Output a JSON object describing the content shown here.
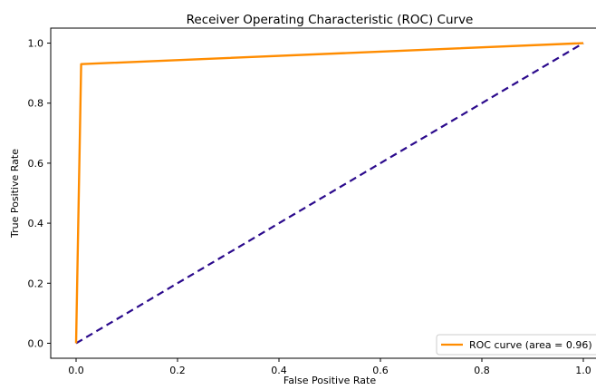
{
  "chart_data": {
    "type": "line",
    "title": "Receiver Operating Characteristic (ROC) Curve",
    "xlabel": "False Positive Rate",
    "ylabel": "True Positive Rate",
    "xlim": [
      -0.05,
      1.05
    ],
    "ylim": [
      -0.05,
      1.05
    ],
    "xticks": [
      0.0,
      0.2,
      0.4,
      0.6,
      0.8,
      1.0
    ],
    "xtick_labels": [
      "0.0",
      "0.2",
      "0.4",
      "0.6",
      "0.8",
      "1.0"
    ],
    "yticks": [
      0.0,
      0.2,
      0.4,
      0.6,
      0.8,
      1.0
    ],
    "ytick_labels": [
      "0.0",
      "0.2",
      "0.4",
      "0.6",
      "0.8",
      "1.0"
    ],
    "grid": false,
    "legend_position": "lower right",
    "series": [
      {
        "name": "ROC curve (area = 0.96)",
        "style": "solid",
        "color": "#ff8c00",
        "x": [
          0.0,
          0.01,
          1.0
        ],
        "y": [
          0.0,
          0.93,
          1.0
        ]
      },
      {
        "style": "dashed",
        "color": "#2b0a8c",
        "x": [
          0.0,
          1.0
        ],
        "y": [
          0.0,
          1.0
        ]
      }
    ]
  }
}
